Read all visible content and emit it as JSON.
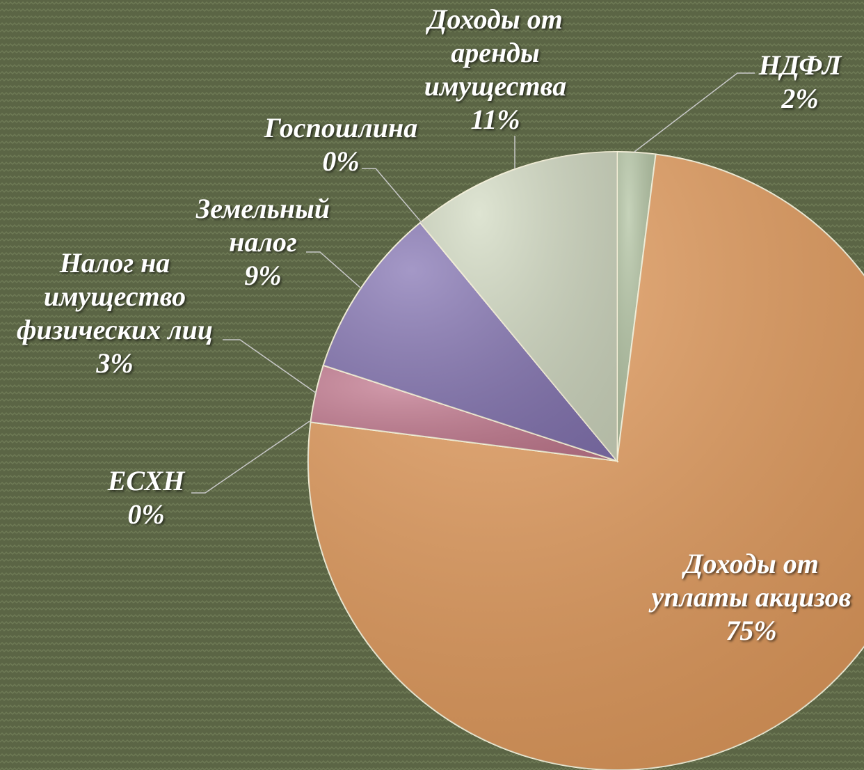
{
  "chart_data": {
    "type": "pie",
    "categories": [
      "НДФЛ",
      "Доходы от уплаты акцизов",
      "ЕСХН",
      "Налог на имущество физических лиц",
      "Земельный налог",
      "Госпошлина",
      "Доходы от аренды имущества"
    ],
    "values": [
      2,
      75,
      0,
      3,
      9,
      0,
      11
    ],
    "value_labels": [
      "2%",
      "75%",
      "0%",
      "3%",
      "9%",
      "0%",
      "11%"
    ],
    "colors": [
      "#b3c4a3",
      "#e39a5a",
      "#f2efd8",
      "#c47a90",
      "#8676b4",
      "#3a3a3a",
      "#d3dbc3"
    ]
  }
}
